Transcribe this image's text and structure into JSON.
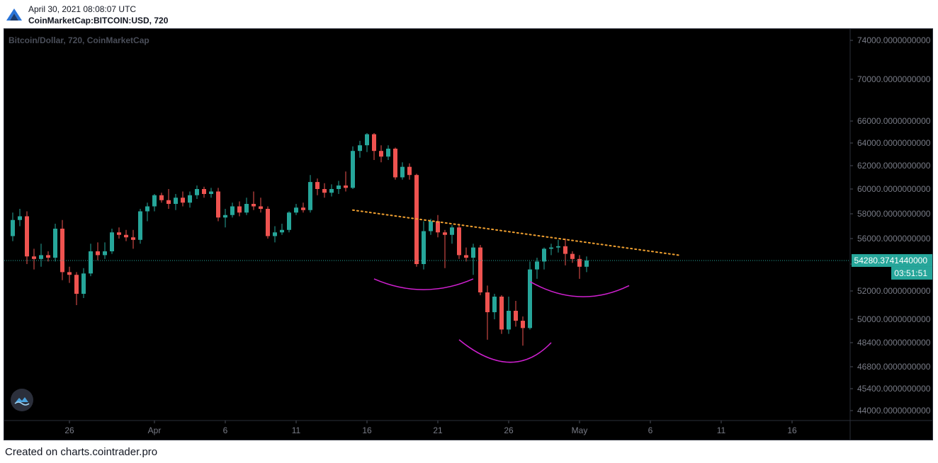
{
  "header": {
    "datetime": "April 30, 2021 08:08:07 UTC",
    "symbol": "CoinMarketCap:BITCOIN:USD, 720"
  },
  "watermark": "Bitcoin/Dollar, 720, CoinMarketCap",
  "footer": "Created on charts.cointrader.pro",
  "colors": {
    "up": "#26a69a",
    "down": "#ef5350",
    "trendline": "#f0a030",
    "pattern": "#d020d0",
    "price_line": "#26a69a",
    "axis_text": "#787b86"
  },
  "icons": {
    "logo": "cointrader-logo-icon",
    "badge": "cloud-wave-icon"
  },
  "chart_data": {
    "type": "candlestick",
    "interval": "720",
    "y_ticks": [
      74000,
      70000,
      66000,
      64000,
      62000,
      60000,
      58000,
      56000,
      54000,
      52000,
      50000,
      48400,
      46800,
      45400,
      44000
    ],
    "y_tick_labels": [
      "74000.0000000000",
      "70000.0000000000",
      "66000.0000000000",
      "64000.0000000000",
      "62000.0000000000",
      "60000.0000000000",
      "58000.0000000000",
      "56000.0000000000",
      "54000.0000000000",
      "52000.0000000000",
      "50000.0000000000",
      "48400.0000000000",
      "46800.0000000000",
      "45400.0000000000",
      "44000.0000000000"
    ],
    "x_ticks": [
      "2021-03-26",
      "2021-04-01",
      "2021-04-06",
      "2021-04-11",
      "2021-04-16",
      "2021-04-21",
      "2021-04-26",
      "2021-05-01",
      "2021-05-06",
      "2021-05-11",
      "2021-05-16"
    ],
    "x_tick_labels": [
      "26",
      "Apr",
      "6",
      "11",
      "16",
      "21",
      "26",
      "May",
      "6",
      "11",
      "16"
    ],
    "last_price": 54280.374144,
    "last_price_label": "54280.3741440000",
    "countdown_label": "03:51:51",
    "candles": [
      {
        "t": "2021-03-22 00:00",
        "o": 56200,
        "h": 58100,
        "l": 55800,
        "c": 57500
      },
      {
        "t": "2021-03-22 12:00",
        "o": 57500,
        "h": 58400,
        "l": 57000,
        "c": 57800
      },
      {
        "t": "2021-03-23 00:00",
        "o": 57800,
        "h": 58200,
        "l": 54000,
        "c": 54600
      },
      {
        "t": "2021-03-23 12:00",
        "o": 54600,
        "h": 55200,
        "l": 53600,
        "c": 54400
      },
      {
        "t": "2021-03-24 00:00",
        "o": 54400,
        "h": 55600,
        "l": 53800,
        "c": 54700
      },
      {
        "t": "2021-03-24 12:00",
        "o": 54700,
        "h": 55000,
        "l": 54200,
        "c": 54500
      },
      {
        "t": "2021-03-25 00:00",
        "o": 54500,
        "h": 57200,
        "l": 54200,
        "c": 56800
      },
      {
        "t": "2021-03-25 12:00",
        "o": 56800,
        "h": 57500,
        "l": 52800,
        "c": 53400
      },
      {
        "t": "2021-03-26 00:00",
        "o": 53400,
        "h": 53800,
        "l": 52600,
        "c": 53200
      },
      {
        "t": "2021-03-26 12:00",
        "o": 53200,
        "h": 53400,
        "l": 51000,
        "c": 51800
      },
      {
        "t": "2021-03-27 00:00",
        "o": 51800,
        "h": 53700,
        "l": 51500,
        "c": 53300
      },
      {
        "t": "2021-03-27 12:00",
        "o": 53300,
        "h": 55600,
        "l": 53100,
        "c": 55000
      },
      {
        "t": "2021-03-28 00:00",
        "o": 55000,
        "h": 55700,
        "l": 54300,
        "c": 54700
      },
      {
        "t": "2021-03-28 12:00",
        "o": 54700,
        "h": 55700,
        "l": 54400,
        "c": 55000
      },
      {
        "t": "2021-03-29 00:00",
        "o": 55000,
        "h": 56800,
        "l": 54800,
        "c": 56500
      },
      {
        "t": "2021-03-29 12:00",
        "o": 56500,
        "h": 56900,
        "l": 56000,
        "c": 56300
      },
      {
        "t": "2021-03-30 00:00",
        "o": 56300,
        "h": 56700,
        "l": 55800,
        "c": 56100
      },
      {
        "t": "2021-03-30 12:00",
        "o": 56100,
        "h": 56700,
        "l": 55200,
        "c": 55900
      },
      {
        "t": "2021-03-31 00:00",
        "o": 55900,
        "h": 58400,
        "l": 55600,
        "c": 58200
      },
      {
        "t": "2021-03-31 12:00",
        "o": 58200,
        "h": 58900,
        "l": 57400,
        "c": 58600
      },
      {
        "t": "2021-04-01 00:00",
        "o": 58600,
        "h": 59600,
        "l": 58200,
        "c": 59500
      },
      {
        "t": "2021-04-01 12:00",
        "o": 59500,
        "h": 59700,
        "l": 58900,
        "c": 59100
      },
      {
        "t": "2021-04-02 00:00",
        "o": 59100,
        "h": 60000,
        "l": 58400,
        "c": 58800
      },
      {
        "t": "2021-04-02 12:00",
        "o": 58800,
        "h": 59600,
        "l": 58300,
        "c": 59300
      },
      {
        "t": "2021-04-03 00:00",
        "o": 59300,
        "h": 59800,
        "l": 58600,
        "c": 58900
      },
      {
        "t": "2021-04-03 12:00",
        "o": 58900,
        "h": 59800,
        "l": 58500,
        "c": 59500
      },
      {
        "t": "2021-04-04 00:00",
        "o": 59500,
        "h": 60300,
        "l": 59200,
        "c": 60000
      },
      {
        "t": "2021-04-04 12:00",
        "o": 60000,
        "h": 60200,
        "l": 59300,
        "c": 59600
      },
      {
        "t": "2021-04-05 00:00",
        "o": 59600,
        "h": 60100,
        "l": 59300,
        "c": 59800
      },
      {
        "t": "2021-04-05 12:00",
        "o": 59800,
        "h": 60100,
        "l": 57400,
        "c": 57700
      },
      {
        "t": "2021-04-06 00:00",
        "o": 57700,
        "h": 58400,
        "l": 56900,
        "c": 57900
      },
      {
        "t": "2021-04-06 12:00",
        "o": 57900,
        "h": 58900,
        "l": 57700,
        "c": 58600
      },
      {
        "t": "2021-04-07 00:00",
        "o": 58600,
        "h": 59000,
        "l": 57800,
        "c": 58100
      },
      {
        "t": "2021-04-07 12:00",
        "o": 58100,
        "h": 59300,
        "l": 57900,
        "c": 58800
      },
      {
        "t": "2021-04-08 00:00",
        "o": 58800,
        "h": 59800,
        "l": 58300,
        "c": 58600
      },
      {
        "t": "2021-04-08 12:00",
        "o": 58600,
        "h": 59300,
        "l": 58100,
        "c": 58400
      },
      {
        "t": "2021-04-09 00:00",
        "o": 58400,
        "h": 58600,
        "l": 56000,
        "c": 56200
      },
      {
        "t": "2021-04-09 12:00",
        "o": 56200,
        "h": 57000,
        "l": 55700,
        "c": 56500
      },
      {
        "t": "2021-04-10 00:00",
        "o": 56500,
        "h": 57200,
        "l": 56300,
        "c": 56700
      },
      {
        "t": "2021-04-10 12:00",
        "o": 56700,
        "h": 58200,
        "l": 56500,
        "c": 58100
      },
      {
        "t": "2021-04-11 00:00",
        "o": 58100,
        "h": 58800,
        "l": 57900,
        "c": 58500
      },
      {
        "t": "2021-04-11 12:00",
        "o": 58500,
        "h": 58900,
        "l": 58100,
        "c": 58300
      },
      {
        "t": "2021-04-12 00:00",
        "o": 58300,
        "h": 61200,
        "l": 58100,
        "c": 60600
      },
      {
        "t": "2021-04-12 12:00",
        "o": 60600,
        "h": 60900,
        "l": 59500,
        "c": 60000
      },
      {
        "t": "2021-04-13 00:00",
        "o": 60000,
        "h": 60500,
        "l": 59300,
        "c": 59700
      },
      {
        "t": "2021-04-13 12:00",
        "o": 59700,
        "h": 60400,
        "l": 59400,
        "c": 60000
      },
      {
        "t": "2021-04-14 00:00",
        "o": 60000,
        "h": 60700,
        "l": 59600,
        "c": 60300
      },
      {
        "t": "2021-04-14 12:00",
        "o": 60300,
        "h": 61500,
        "l": 59800,
        "c": 60100
      },
      {
        "t": "2021-04-15 00:00",
        "o": 60100,
        "h": 63700,
        "l": 60000,
        "c": 63300
      },
      {
        "t": "2021-04-15 12:00",
        "o": 63300,
        "h": 64200,
        "l": 62700,
        "c": 63800
      },
      {
        "t": "2021-04-16 00:00",
        "o": 63800,
        "h": 64900,
        "l": 63200,
        "c": 64800
      },
      {
        "t": "2021-04-16 12:00",
        "o": 64800,
        "h": 64900,
        "l": 62500,
        "c": 63300
      },
      {
        "t": "2021-04-17 00:00",
        "o": 63300,
        "h": 63800,
        "l": 62300,
        "c": 62800
      },
      {
        "t": "2021-04-17 12:00",
        "o": 62800,
        "h": 63800,
        "l": 62500,
        "c": 63500
      },
      {
        "t": "2021-04-18 00:00",
        "o": 63500,
        "h": 63600,
        "l": 60800,
        "c": 61000
      },
      {
        "t": "2021-04-18 12:00",
        "o": 61000,
        "h": 62300,
        "l": 60800,
        "c": 61900
      },
      {
        "t": "2021-04-19 00:00",
        "o": 61900,
        "h": 62200,
        "l": 60800,
        "c": 61200
      },
      {
        "t": "2021-04-19 12:00",
        "o": 61200,
        "h": 61300,
        "l": 53800,
        "c": 54000
      },
      {
        "t": "2021-04-20 00:00",
        "o": 54000,
        "h": 57400,
        "l": 53600,
        "c": 56600
      },
      {
        "t": "2021-04-20 12:00",
        "o": 56600,
        "h": 57600,
        "l": 56300,
        "c": 57400
      },
      {
        "t": "2021-04-21 00:00",
        "o": 57400,
        "h": 57900,
        "l": 56100,
        "c": 56500
      },
      {
        "t": "2021-04-21 12:00",
        "o": 56500,
        "h": 56700,
        "l": 53700,
        "c": 56300
      },
      {
        "t": "2021-04-22 00:00",
        "o": 56300,
        "h": 57100,
        "l": 55600,
        "c": 56900
      },
      {
        "t": "2021-04-22 12:00",
        "o": 56900,
        "h": 57200,
        "l": 54400,
        "c": 54700
      },
      {
        "t": "2021-04-23 00:00",
        "o": 54700,
        "h": 55300,
        "l": 54200,
        "c": 54500
      },
      {
        "t": "2021-04-23 12:00",
        "o": 54500,
        "h": 55600,
        "l": 53200,
        "c": 55300
      },
      {
        "t": "2021-04-24 00:00",
        "o": 55300,
        "h": 55500,
        "l": 51700,
        "c": 51900
      },
      {
        "t": "2021-04-24 12:00",
        "o": 51900,
        "h": 52400,
        "l": 48600,
        "c": 50500
      },
      {
        "t": "2021-04-25 00:00",
        "o": 50500,
        "h": 51800,
        "l": 50000,
        "c": 51600
      },
      {
        "t": "2021-04-25 12:00",
        "o": 51600,
        "h": 51700,
        "l": 49000,
        "c": 49300
      },
      {
        "t": "2021-04-26 00:00",
        "o": 49300,
        "h": 51600,
        "l": 49000,
        "c": 50600
      },
      {
        "t": "2021-04-26 12:00",
        "o": 50600,
        "h": 51300,
        "l": 49500,
        "c": 49900
      },
      {
        "t": "2021-04-27 00:00",
        "o": 49900,
        "h": 50200,
        "l": 48200,
        "c": 49400
      },
      {
        "t": "2021-04-27 12:00",
        "o": 49400,
        "h": 54200,
        "l": 49300,
        "c": 53600
      },
      {
        "t": "2021-04-28 00:00",
        "o": 53600,
        "h": 54500,
        "l": 52900,
        "c": 54200
      },
      {
        "t": "2021-04-28 12:00",
        "o": 54200,
        "h": 55300,
        "l": 53600,
        "c": 55200
      },
      {
        "t": "2021-04-29 00:00",
        "o": 55200,
        "h": 55600,
        "l": 54700,
        "c": 55300
      },
      {
        "t": "2021-04-29 12:00",
        "o": 55300,
        "h": 55900,
        "l": 54900,
        "c": 55400
      },
      {
        "t": "2021-04-30 00:00",
        "o": 55400,
        "h": 56000,
        "l": 53900,
        "c": 54800
      },
      {
        "t": "2021-04-30 12:00",
        "o": 54800,
        "h": 55000,
        "l": 54100,
        "c": 54400
      },
      {
        "t": "2021-05-01 00:00",
        "o": 54400,
        "h": 54700,
        "l": 52900,
        "c": 53800
      },
      {
        "t": "2021-05-01 12:00",
        "o": 53800,
        "h": 54600,
        "l": 53400,
        "c": 54280
      }
    ],
    "trendline": {
      "style": "dotted",
      "from": {
        "t": "2021-04-15 00:00",
        "price": 58300
      },
      "to": {
        "t": "2021-05-08 00:00",
        "price": 54700
      }
    },
    "pattern_arcs": [
      {
        "from": {
          "t": "2021-04-16 12:00",
          "price": 52900
        },
        "mid": {
          "t": "2021-04-20 00:00",
          "price": 52100
        },
        "to": {
          "t": "2021-04-23 12:00",
          "price": 52900
        }
      },
      {
        "from": {
          "t": "2021-04-22 12:00",
          "price": 48600
        },
        "mid": {
          "t": "2021-04-26 00:00",
          "price": 47100
        },
        "to": {
          "t": "2021-04-29 00:00",
          "price": 48400
        }
      },
      {
        "from": {
          "t": "2021-04-27 12:00",
          "price": 52700
        },
        "mid": {
          "t": "2021-05-01 00:00",
          "price": 51600
        },
        "to": {
          "t": "2021-05-04 12:00",
          "price": 52400
        }
      }
    ]
  }
}
